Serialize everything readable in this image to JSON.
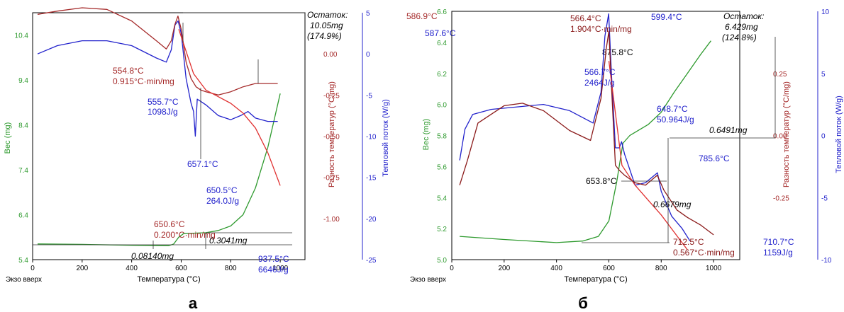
{
  "chart_data": [
    {
      "type": "line",
      "panel_label": "а",
      "xlabel": "Температура (°C)",
      "xlim": [
        0,
        1100
      ],
      "xticks": [
        "0",
        "200",
        "400",
        "600",
        "800",
        "1000"
      ],
      "corner_label": "Экзо вверх",
      "axes": {
        "weight": {
          "label": "Вес (mg)",
          "lim": [
            5.4,
            10.9
          ],
          "ticks": [
            "10.4",
            "9.4",
            "8.4",
            "7.4",
            "6.4",
            "5.4"
          ],
          "color": "#2e9a2e"
        },
        "dt": {
          "label": "Разность температур (°C/mg)",
          "lim": [
            -1.25,
            0.25
          ],
          "ticks": [
            "0.00",
            "-0.25",
            "-0.50",
            "-0.75",
            "-1.00"
          ],
          "color": "#a52a2a"
        },
        "heat": {
          "label": "Тепловой поток (W/g)",
          "lim": [
            -25,
            5
          ],
          "ticks": [
            "5",
            "0",
            "-5",
            "-10",
            "-15",
            "-20",
            "-25"
          ],
          "color": "#2222cc"
        }
      },
      "series": [
        {
          "axis": "weight",
          "color": "#2e9a2e",
          "x": [
            20,
            200,
            400,
            550,
            570,
            590,
            610,
            650,
            700,
            750,
            800,
            850,
            900,
            950,
            1000
          ],
          "y": [
            5.75,
            5.74,
            5.72,
            5.71,
            5.75,
            5.9,
            5.98,
            5.99,
            6.0,
            6.05,
            6.15,
            6.4,
            7.0,
            7.9,
            9.1
          ]
        },
        {
          "axis": "heat",
          "color": "#2222cc",
          "x": [
            20,
            100,
            200,
            300,
            400,
            500,
            540,
            560,
            575,
            587.6,
            600,
            620,
            640,
            650,
            657.1,
            665,
            680,
            700,
            750,
            800,
            840,
            870,
            900,
            950,
            990
          ],
          "y": [
            0,
            1.0,
            1.6,
            1.6,
            1.0,
            -0.5,
            -1.0,
            0.5,
            3.5,
            4.0,
            2.5,
            -3.0,
            -6.0,
            -7.0,
            -10.0,
            -5.5,
            -5.8,
            -6.2,
            -7.5,
            -8.0,
            -7.5,
            -7.0,
            -7.8,
            -8.2,
            -8.2
          ]
        },
        {
          "axis": "dt",
          "color": "#a52a2a",
          "x": [
            20,
            100,
            200,
            300,
            400,
            500,
            540,
            560,
            575,
            586.9,
            600,
            620,
            640,
            660,
            680,
            700,
            750,
            800,
            850,
            900,
            950,
            990
          ],
          "y": [
            0.24,
            0.26,
            0.28,
            0.27,
            0.2,
            0.08,
            0.03,
            0.08,
            0.18,
            0.23,
            0.15,
            -0.05,
            -0.15,
            -0.2,
            -0.22,
            -0.23,
            -0.25,
            -0.23,
            -0.2,
            -0.18,
            -0.18,
            -0.18
          ]
        },
        {
          "axis": "dt",
          "color": "#e03030",
          "x": [
            590,
            650,
            700,
            750,
            800,
            850,
            900,
            950,
            1000
          ],
          "y": [
            0.15,
            -0.12,
            -0.22,
            -0.26,
            -0.3,
            -0.36,
            -0.45,
            -0.6,
            -0.8
          ]
        }
      ],
      "annotations": {
        "residue": [
          "Остаток:",
          "10.05mg",
          "(174.9%)"
        ],
        "t586": "586.9°C",
        "t587": "587.6°C",
        "t875": "875.8°C",
        "t554": "554.8°C",
        "r554": "0.915°C·min/mg",
        "t555": "555.7°C",
        "h555": "1098J/g",
        "t657": "657.1°C",
        "t650b": "650.5°C",
        "h650": "264.0J/g",
        "t650r": "650.6°C",
        "r650": "0.200°C·min/mg",
        "m3041": "0.3041mg",
        "m0814": "0.08140mg",
        "t937": "937.5°C",
        "h937": "6646J/g"
      }
    },
    {
      "type": "line",
      "panel_label": "б",
      "xlabel": "Температура (°C)",
      "xlim": [
        0,
        1100
      ],
      "xticks": [
        "0",
        "200",
        "400",
        "600",
        "800",
        "1000"
      ],
      "corner_label": "Экзо вверх",
      "axes": {
        "weight": {
          "label": "Вес (mg)",
          "lim": [
            5.0,
            6.6
          ],
          "ticks": [
            "6.6",
            "6.4",
            "6.2",
            "6.0",
            "5.8",
            "5.6",
            "5.4",
            "5.2",
            "5.0"
          ],
          "color": "#2e9a2e"
        },
        "dt": {
          "label": "Разность температур (°C/mg)",
          "lim": [
            -0.5,
            0.5
          ],
          "ticks": [
            "0.25",
            "0.00",
            "-0.25"
          ],
          "color": "#a52a2a"
        },
        "heat": {
          "label": "Тепловой поток (W/g)",
          "lim": [
            -10,
            10
          ],
          "ticks": [
            "10",
            "5",
            "0",
            "-5",
            "-10"
          ],
          "color": "#2222cc"
        }
      },
      "series": [
        {
          "axis": "weight",
          "color": "#2e9a2e",
          "x": [
            30,
            200,
            400,
            500,
            560,
            600,
            630,
            653.8,
            680,
            700,
            750,
            800,
            850,
            900,
            950,
            990
          ],
          "y": [
            5.15,
            5.13,
            5.11,
            5.12,
            5.15,
            5.25,
            5.5,
            5.75,
            5.8,
            5.82,
            5.87,
            5.95,
            6.08,
            6.2,
            6.32,
            6.41
          ]
        },
        {
          "axis": "heat",
          "color": "#2222cc",
          "x": [
            30,
            50,
            80,
            150,
            250,
            350,
            450,
            540,
            570,
            585,
            599.4,
            610,
            625,
            640,
            648.7,
            660,
            700,
            740,
            785.6,
            800,
            840,
            880,
            910
          ],
          "y": [
            -2.0,
            0.5,
            1.7,
            2.1,
            2.3,
            2.5,
            2.0,
            1.0,
            3.5,
            8.0,
            9.8,
            5.0,
            -1.0,
            -1.0,
            -0.5,
            -1.5,
            -4.0,
            -3.8,
            -3.0,
            -4.5,
            -6.5,
            -7.5,
            -8.5
          ]
        },
        {
          "axis": "dt",
          "color": "#8b1a1a",
          "x": [
            30,
            60,
            100,
            200,
            270,
            350,
            450,
            530,
            570,
            590,
            600,
            610,
            625,
            640,
            660,
            700,
            740,
            785,
            810,
            860,
            900,
            950,
            1000
          ],
          "y": [
            -0.2,
            -0.1,
            0.05,
            0.12,
            0.13,
            0.1,
            0.02,
            -0.02,
            0.15,
            0.35,
            0.42,
            0.2,
            -0.12,
            -0.14,
            -0.16,
            -0.19,
            -0.2,
            -0.16,
            -0.22,
            -0.3,
            -0.33,
            -0.36,
            -0.4
          ]
        },
        {
          "axis": "dt",
          "color": "#e03030",
          "x": [
            600,
            650,
            700,
            750,
            800,
            850,
            900
          ],
          "y": [
            0.3,
            -0.12,
            -0.2,
            -0.26,
            -0.32,
            -0.39,
            -0.46
          ]
        }
      ],
      "annotations": {
        "residue": [
          "Остаток:",
          "6.429mg",
          "(124.8%)"
        ],
        "t566": "566.4°C",
        "r566": "1.904°C·min/mg",
        "t599": "599.4°C",
        "t566b": "566.7°C",
        "h566": "2464J/g",
        "t648": "648.7°C",
        "h648": "50.964J/g",
        "m6491": "0.6491mg",
        "t785": "785.6°C",
        "t653": "653.8°C",
        "m6679": "0.6679mg",
        "t712": "712.5°C",
        "r712": "0.567°C·min/mg",
        "t710": "710.7°C",
        "h710": "1159J/g"
      }
    }
  ]
}
